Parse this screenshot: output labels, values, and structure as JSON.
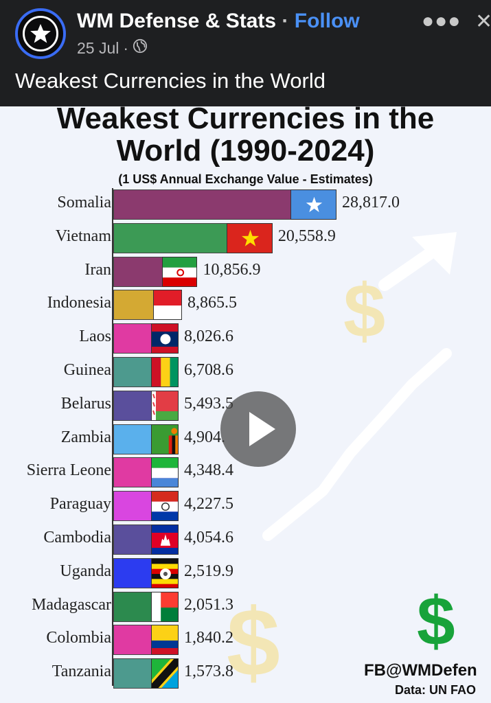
{
  "post": {
    "page_name": "WM Defense & Stats",
    "separator": "·",
    "follow_label": "Follow",
    "date": "25 Jul",
    "date_separator": "·",
    "audience_icon": "globe-icon",
    "more_icon": "more-icon",
    "close_icon": "close-icon",
    "text": "Weakest Currencies in the World"
  },
  "media": {
    "play_icon": "play-icon",
    "watermark": "FB@WMDefen",
    "data_source": "Data: UN FAO",
    "dollar_symbol": "$"
  },
  "colors": {
    "header_bg": "#1e1f21",
    "follow": "#4a90f5",
    "avatar_ring": "#3a6cf4",
    "chart_bg": "#f1f4fb",
    "dollar_green": "#18a33a"
  },
  "chart_data": {
    "type": "bar",
    "orientation": "horizontal",
    "title_line1": "Weakest Currencies in the",
    "title_line2": "World (1990-2024)",
    "subtitle": "(1 US$ Annual Exchange Value - Estimates)",
    "categories": [
      "Somalia",
      "Vietnam",
      "Iran",
      "Indonesia",
      "Laos",
      "Guinea",
      "Belarus",
      "Zambia",
      "Sierra Leone",
      "Paraguay",
      "Cambodia",
      "Uganda",
      "Madagascar",
      "Colombia",
      "Tanzania"
    ],
    "values": [
      28817.0,
      20558.9,
      10856.9,
      8865.5,
      8026.6,
      6708.6,
      5493.5,
      4904.0,
      4348.4,
      4227.5,
      4054.6,
      2519.9,
      2051.3,
      1840.2,
      1573.8
    ],
    "value_labels": [
      "28,817.0",
      "20,558.9",
      "10,856.9",
      "8,865.5",
      "8,026.6",
      "6,708.6",
      "5,493.5",
      "4,904.",
      "4,348.4",
      "4,227.5",
      "4,054.6",
      "2,519.9",
      "2,051.3",
      "1,840.2",
      "1,573.8"
    ],
    "bar_colors": [
      "#8b3a6e",
      "#3c9a55",
      "#8b3a6e",
      "#d4a933",
      "#e03aa2",
      "#4d9a8e",
      "#5a4f9c",
      "#5ab0ec",
      "#e03aa2",
      "#d946e0",
      "#5a4f9c",
      "#2c3cf0",
      "#2c8a4e",
      "#e03aa2",
      "#4d9a8e"
    ],
    "flags": [
      "somalia",
      "vietnam",
      "iran",
      "indonesia",
      "laos",
      "guinea",
      "belarus",
      "zambia",
      "sierra-leone",
      "paraguay",
      "cambodia",
      "uganda",
      "madagascar",
      "colombia",
      "tanzania"
    ]
  }
}
